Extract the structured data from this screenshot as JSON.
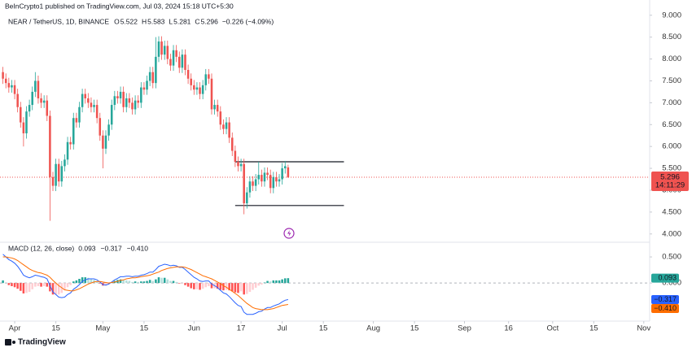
{
  "chart_data": {
    "type": "candlestick",
    "attribution": "BeInCrypto1 published on TradingView.com, Jul 03, 2024 15:18 UTC+5:30",
    "symbol": "NEAR / TetherUS, 1D, BINANCE",
    "ohlc_labels": [
      "O",
      "H",
      "L",
      "C"
    ],
    "ohlc_values": [
      5.522,
      5.583,
      5.281,
      5.296
    ],
    "change": "−0.226 (−4.09%)",
    "countdown": "14:11:29",
    "footer": "TradingView",
    "up_color": "#26a69a",
    "down_color": "#ef5350",
    "xlim": [
      -5,
      216
    ],
    "xticks": [
      {
        "value": 0,
        "label": "Apr"
      },
      {
        "value": 14,
        "label": "15"
      },
      {
        "value": 30,
        "label": "May"
      },
      {
        "value": 44,
        "label": "15"
      },
      {
        "value": 61,
        "label": "Jun"
      },
      {
        "value": 77,
        "label": "17"
      },
      {
        "value": 91,
        "label": "Jul"
      },
      {
        "value": 105,
        "label": "15"
      },
      {
        "value": 122,
        "label": "Aug"
      },
      {
        "value": 136,
        "label": "15"
      },
      {
        "value": 153,
        "label": "Sep"
      },
      {
        "value": 168,
        "label": "16"
      },
      {
        "value": 183,
        "label": "Oct"
      },
      {
        "value": 197,
        "label": "15"
      },
      {
        "value": 214,
        "label": "Nov"
      }
    ],
    "ylim": [
      3.81,
      9.2
    ],
    "yticks": [
      {
        "value": 9,
        "label": "9.000"
      },
      {
        "value": 8.5,
        "label": "8.500"
      },
      {
        "value": 8,
        "label": "8.000"
      },
      {
        "value": 7.5,
        "label": "7.500"
      },
      {
        "value": 7,
        "label": "7.000"
      },
      {
        "value": 6.5,
        "label": "6.500"
      },
      {
        "value": 6,
        "label": "6.000"
      },
      {
        "value": 5.5,
        "label": "5.500"
      },
      {
        "value": 5,
        "label": "5.000"
      },
      {
        "value": 4.5,
        "label": "4.500"
      },
      {
        "value": 4,
        "label": "4.000"
      }
    ],
    "levels": [
      {
        "value": 5.65,
        "from": 75,
        "to": 112
      },
      {
        "value": 4.65,
        "from": 75,
        "to": 112
      }
    ],
    "x": [
      -4,
      -3,
      -2,
      -1,
      0,
      1,
      2,
      3,
      4,
      5,
      6,
      7,
      8,
      9,
      10,
      11,
      12,
      13,
      14,
      15,
      16,
      17,
      18,
      19,
      20,
      21,
      22,
      23,
      24,
      25,
      26,
      27,
      28,
      29,
      30,
      31,
      32,
      33,
      34,
      35,
      36,
      37,
      38,
      39,
      40,
      41,
      42,
      43,
      44,
      45,
      46,
      47,
      48,
      49,
      50,
      51,
      52,
      53,
      54,
      55,
      56,
      57,
      58,
      59,
      60,
      61,
      62,
      63,
      64,
      65,
      66,
      67,
      68,
      69,
      70,
      71,
      72,
      73,
      74,
      75,
      76,
      77,
      78,
      79,
      80,
      81,
      82,
      83,
      84,
      85,
      86,
      87,
      88,
      89,
      90,
      91,
      92,
      93
    ],
    "open": [
      7.7,
      7.55,
      7.45,
      7.35,
      7.4,
      7.2,
      6.9,
      6.55,
      6.3,
      6.8,
      6.95,
      7.25,
      7.5,
      7.1,
      7.0,
      7.05,
      6.7,
      5.3,
      5.1,
      5.6,
      5.2,
      5.55,
      5.7,
      6.1,
      6.05,
      6.65,
      6.55,
      6.9,
      7.2,
      7.1,
      7.0,
      6.9,
      6.95,
      6.65,
      6.25,
      5.95,
      6.25,
      6.5,
      6.95,
      7.15,
      7.1,
      7.25,
      6.9,
      7.1,
      7.0,
      6.85,
      7.05,
      7.0,
      7.35,
      7.3,
      7.5,
      7.7,
      7.45,
      8.05,
      8.4,
      8.1,
      8.3,
      8.0,
      7.85,
      8.2,
      8.05,
      7.8,
      8.1,
      7.75,
      7.55,
      7.4,
      7.3,
      7.35,
      7.2,
      7.4,
      7.65,
      7.55,
      6.85,
      6.95,
      6.8,
      6.5,
      6.4,
      6.55,
      6.2,
      5.9,
      5.65,
      5.55,
      5.6,
      4.7,
      4.95,
      5.2,
      5.1,
      5.25,
      5.35,
      5.2,
      5.4,
      5.35,
      5.05,
      5.3,
      5.2,
      5.25,
      5.5,
      5.522
    ],
    "high": [
      7.82,
      7.67,
      7.57,
      7.52,
      7.52,
      7.32,
      7.02,
      6.67,
      6.92,
      7.07,
      7.37,
      7.7,
      7.62,
      7.22,
      7.17,
      7.17,
      6.82,
      5.42,
      5.72,
      5.72,
      5.67,
      5.82,
      6.22,
      6.22,
      6.77,
      6.77,
      7.02,
      7.32,
      7.32,
      7.22,
      7.12,
      7.07,
      7.07,
      6.77,
      6.37,
      6.37,
      6.62,
      7.07,
      7.27,
      7.27,
      7.37,
      7.37,
      7.22,
      7.22,
      7.12,
      7.17,
      7.17,
      7.47,
      7.47,
      7.62,
      7.82,
      7.82,
      8.5,
      8.52,
      8.52,
      8.42,
      8.42,
      8.12,
      8.32,
      8.32,
      8.17,
      8.22,
      8.22,
      7.87,
      7.67,
      7.52,
      7.47,
      7.47,
      7.52,
      7.77,
      7.77,
      7.67,
      7.07,
      7.07,
      6.92,
      6.62,
      6.67,
      6.67,
      6.32,
      6.02,
      5.77,
      5.72,
      5.72,
      5.07,
      5.32,
      5.32,
      5.37,
      5.65,
      5.47,
      5.52,
      5.52,
      5.47,
      5.42,
      5.42,
      5.37,
      5.62,
      5.67,
      5.583
    ],
    "low": [
      7.43,
      7.33,
      7.23,
      7.23,
      7.08,
      6.78,
      6.43,
      6.0,
      6.18,
      6.68,
      6.83,
      7.13,
      6.98,
      6.88,
      6.88,
      6.58,
      4.3,
      4.98,
      4.98,
      5.08,
      5.08,
      5.43,
      5.58,
      5.93,
      5.93,
      6.43,
      6.43,
      6.78,
      6.98,
      6.88,
      6.78,
      6.78,
      6.53,
      6.13,
      5.5,
      5.83,
      6.13,
      6.38,
      6.83,
      6.98,
      6.98,
      6.78,
      6.78,
      6.88,
      6.73,
      6.73,
      6.88,
      6.88,
      7.18,
      7.18,
      7.38,
      7.33,
      7.33,
      7.93,
      7.98,
      7.98,
      7.88,
      7.73,
      7.73,
      7.93,
      7.68,
      7.68,
      7.63,
      7.43,
      7.28,
      7.18,
      7.18,
      7.08,
      7.08,
      7.28,
      7.43,
      6.73,
      6.73,
      6.68,
      6.38,
      6.28,
      6.28,
      6.08,
      5.78,
      5.53,
      5.43,
      5.43,
      4.45,
      4.58,
      4.83,
      4.98,
      4.98,
      5.13,
      5.08,
      5.08,
      5.23,
      4.93,
      4.93,
      5.08,
      5.08,
      5.13,
      5.38,
      5.281
    ],
    "close": [
      7.55,
      7.45,
      7.35,
      7.4,
      7.2,
      6.9,
      6.55,
      6.3,
      6.8,
      6.95,
      7.25,
      7.5,
      7.1,
      7.0,
      7.05,
      6.7,
      5.3,
      5.1,
      5.6,
      5.2,
      5.55,
      5.7,
      6.1,
      6.05,
      6.65,
      6.55,
      6.9,
      7.2,
      7.1,
      7.0,
      6.9,
      6.95,
      6.65,
      6.25,
      5.95,
      6.25,
      6.5,
      6.95,
      7.15,
      7.1,
      7.25,
      6.9,
      7.1,
      7.0,
      6.85,
      7.05,
      7.0,
      7.35,
      7.3,
      7.5,
      7.7,
      7.45,
      8.05,
      8.4,
      8.1,
      8.3,
      8.0,
      7.85,
      8.2,
      8.05,
      7.8,
      8.1,
      7.75,
      7.55,
      7.4,
      7.3,
      7.35,
      7.2,
      7.4,
      7.65,
      7.55,
      6.85,
      6.95,
      6.8,
      6.5,
      6.4,
      6.55,
      6.2,
      5.9,
      5.65,
      5.55,
      5.6,
      4.7,
      4.95,
      5.2,
      5.1,
      5.25,
      5.35,
      5.2,
      5.4,
      5.35,
      5.05,
      5.3,
      5.2,
      5.25,
      5.5,
      5.55,
      5.296
    ],
    "macd": {
      "title": "MACD (12, 26, close)",
      "ylim": [
        -0.73,
        0.75
      ],
      "yticks": [
        {
          "value": 0.5,
          "label": "0.500"
        },
        {
          "value": 0,
          "label": "0.000"
        }
      ],
      "series": [
        {
          "name": "MACD",
          "color": "#2962ff",
          "last_label": "−0.317",
          "values": [
            0.55,
            0.5,
            0.45,
            0.42,
            0.38,
            0.32,
            0.24,
            0.15,
            0.12,
            0.1,
            0.12,
            0.15,
            0.14,
            0.12,
            0.11,
            0.08,
            -0.05,
            -0.17,
            -0.22,
            -0.27,
            -0.28,
            -0.27,
            -0.22,
            -0.19,
            -0.12,
            -0.08,
            -0.03,
            0.03,
            0.06,
            0.08,
            0.08,
            0.08,
            0.06,
            0.02,
            -0.03,
            -0.04,
            -0.02,
            0.02,
            0.06,
            0.09,
            0.12,
            0.12,
            0.13,
            0.13,
            0.12,
            0.13,
            0.13,
            0.15,
            0.16,
            0.18,
            0.21,
            0.21,
            0.26,
            0.32,
            0.34,
            0.36,
            0.35,
            0.33,
            0.34,
            0.33,
            0.3,
            0.3,
            0.26,
            0.21,
            0.16,
            0.11,
            0.08,
            0.04,
            0.03,
            0.04,
            0.04,
            -0.02,
            -0.05,
            -0.09,
            -0.14,
            -0.19,
            -0.21,
            -0.26,
            -0.32,
            -0.38,
            -0.43,
            -0.45,
            -0.56,
            -0.6,
            -0.6,
            -0.6,
            -0.58,
            -0.55,
            -0.54,
            -0.5,
            -0.47,
            -0.47,
            -0.44,
            -0.42,
            -0.4,
            -0.36,
            -0.33,
            -0.317
          ]
        },
        {
          "name": "Signal",
          "color": "#ff6d00",
          "last_label": "−0.410",
          "values": [
            0.5,
            0.5,
            0.49,
            0.48,
            0.46,
            0.43,
            0.39,
            0.35,
            0.31,
            0.27,
            0.24,
            0.22,
            0.2,
            0.19,
            0.17,
            0.15,
            0.11,
            0.05,
            0.0,
            -0.05,
            -0.09,
            -0.13,
            -0.14,
            -0.15,
            -0.15,
            -0.13,
            -0.11,
            -0.08,
            -0.05,
            -0.02,
            0.0,
            0.02,
            0.03,
            0.03,
            0.02,
            0.01,
            0.0,
            0.01,
            0.02,
            0.03,
            0.05,
            0.06,
            0.08,
            0.09,
            0.1,
            0.1,
            0.11,
            0.12,
            0.13,
            0.14,
            0.15,
            0.17,
            0.19,
            0.21,
            0.24,
            0.26,
            0.28,
            0.29,
            0.3,
            0.31,
            0.31,
            0.31,
            0.3,
            0.28,
            0.26,
            0.23,
            0.2,
            0.17,
            0.14,
            0.12,
            0.1,
            0.08,
            0.05,
            0.02,
            -0.01,
            -0.05,
            -0.08,
            -0.12,
            -0.16,
            -0.2,
            -0.24,
            -0.29,
            -0.34,
            -0.39,
            -0.43,
            -0.47,
            -0.49,
            -0.5,
            -0.51,
            -0.51,
            -0.51,
            -0.5,
            -0.49,
            -0.47,
            -0.45,
            -0.43,
            -0.42,
            -0.41
          ]
        }
      ],
      "histogram": {
        "name": "Histogram",
        "colors": [
          "#26a69a",
          "#b2dfdb",
          "#ffcdd2",
          "#ff5252"
        ],
        "last_label": "0.093",
        "values": [
          0.05,
          0.0,
          -0.04,
          -0.06,
          -0.08,
          -0.11,
          -0.15,
          -0.2,
          -0.19,
          -0.17,
          -0.12,
          -0.07,
          -0.06,
          -0.07,
          -0.06,
          -0.07,
          -0.16,
          -0.22,
          -0.22,
          -0.22,
          -0.19,
          -0.14,
          -0.08,
          -0.04,
          0.03,
          0.05,
          0.08,
          0.11,
          0.11,
          0.1,
          0.08,
          0.06,
          0.03,
          -0.01,
          -0.05,
          -0.05,
          -0.02,
          0.01,
          0.04,
          0.06,
          0.07,
          0.06,
          0.05,
          0.04,
          0.02,
          0.03,
          0.02,
          0.03,
          0.03,
          0.04,
          0.06,
          0.04,
          0.07,
          0.11,
          0.1,
          0.1,
          0.07,
          0.04,
          0.04,
          0.02,
          -0.01,
          -0.01,
          -0.04,
          -0.07,
          -0.1,
          -0.12,
          -0.12,
          -0.13,
          -0.11,
          -0.08,
          -0.06,
          -0.1,
          -0.1,
          -0.11,
          -0.13,
          -0.14,
          -0.13,
          -0.14,
          -0.16,
          -0.18,
          -0.19,
          -0.16,
          -0.22,
          -0.21,
          -0.17,
          -0.13,
          -0.09,
          -0.05,
          -0.03,
          0.01,
          0.04,
          0.03,
          0.05,
          0.05,
          0.05,
          0.07,
          0.09,
          0.093
        ]
      }
    }
  }
}
